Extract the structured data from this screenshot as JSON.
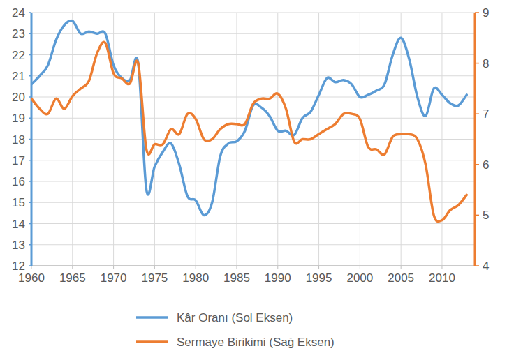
{
  "chart_data": {
    "type": "line",
    "x": [
      1960,
      1961,
      1962,
      1963,
      1964,
      1965,
      1966,
      1967,
      1968,
      1969,
      1970,
      1971,
      1972,
      1973,
      1974,
      1975,
      1976,
      1977,
      1978,
      1979,
      1980,
      1981,
      1982,
      1983,
      1984,
      1985,
      1986,
      1987,
      1988,
      1989,
      1990,
      1991,
      1992,
      1993,
      1994,
      1995,
      1996,
      1997,
      1998,
      1999,
      2000,
      2001,
      2002,
      2003,
      2004,
      2005,
      2006,
      2007,
      2008,
      2009,
      2010,
      2011,
      2012,
      2013
    ],
    "series": [
      {
        "name": "Kâr Oranı (Sol Eksen)",
        "color": "#5b9bd5",
        "line_style": "solid",
        "values": [
          20.6,
          21.0,
          21.5,
          22.7,
          23.4,
          23.6,
          23.0,
          23.1,
          23.0,
          23.0,
          21.5,
          20.9,
          20.8,
          21.6,
          15.6,
          16.7,
          17.4,
          17.8,
          16.8,
          15.3,
          15.1,
          14.4,
          15.0,
          17.2,
          17.8,
          17.9,
          18.4,
          19.6,
          19.5,
          19.1,
          18.4,
          18.4,
          18.2,
          19.0,
          19.3,
          20.1,
          20.9,
          20.7,
          20.8,
          20.6,
          20.0,
          20.1,
          20.3,
          20.6,
          22.0,
          22.8,
          21.8,
          20.0,
          19.1,
          20.4,
          20.1,
          19.7,
          19.6,
          20.1
        ]
      },
      {
        "name": "Sermaye Birikimi (Sağ Eksen)",
        "color": "#ed7d31",
        "line_style": "solid",
        "axis": "y2",
        "values": [
          7.3,
          7.1,
          7.0,
          7.3,
          7.1,
          7.35,
          7.5,
          7.65,
          8.2,
          8.4,
          7.8,
          7.7,
          7.6,
          8.0,
          6.3,
          6.4,
          6.4,
          6.7,
          6.6,
          7.0,
          6.9,
          6.5,
          6.5,
          6.7,
          6.8,
          6.8,
          6.8,
          7.2,
          7.3,
          7.3,
          7.4,
          7.1,
          6.45,
          6.5,
          6.5,
          6.6,
          6.7,
          6.8,
          7.0,
          7.0,
          6.9,
          6.35,
          6.3,
          6.2,
          6.55,
          6.6,
          6.6,
          6.5,
          6.0,
          5.0,
          4.9,
          5.1,
          5.2,
          5.4
        ]
      }
    ],
    "xlim": [
      1960,
      2014
    ],
    "xticks": [
      1960,
      1965,
      1970,
      1975,
      1980,
      1985,
      1990,
      1995,
      2000,
      2005,
      2010
    ],
    "ylim": [
      12,
      24
    ],
    "yticks": [
      12,
      13,
      14,
      15,
      16,
      17,
      18,
      19,
      20,
      21,
      22,
      23,
      24
    ],
    "y2lim": [
      4,
      9
    ],
    "y2ticks": [
      4,
      5,
      6,
      7,
      8,
      9
    ],
    "grid": true,
    "legend": "bottom"
  }
}
